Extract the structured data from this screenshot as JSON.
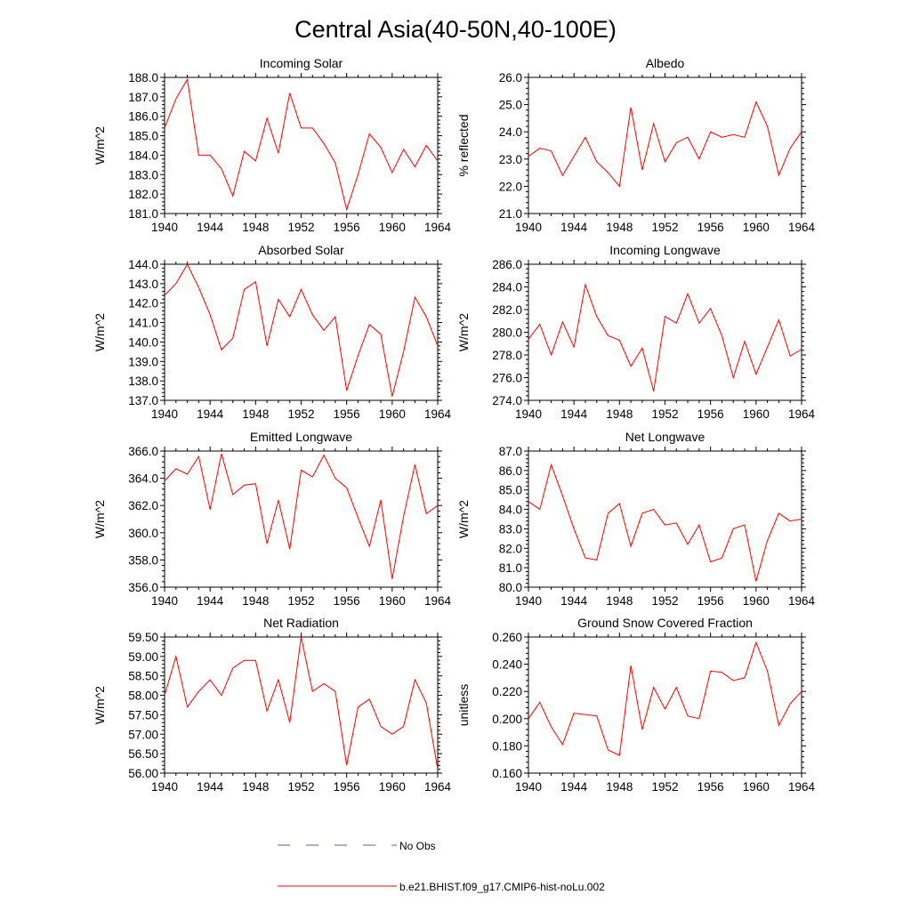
{
  "figure": {
    "title": "Central Asia(40-50N,40-100E)",
    "line_color": "#ff0000",
    "obs_color": "#5a5aa8"
  },
  "legend": {
    "obs_label": "No Obs",
    "model_label": "b.e21.BHIST.f09_g17.CMIP6-hist-noLu.002"
  },
  "chart_data": [
    {
      "type": "line",
      "title": "Incoming Solar",
      "ylabel": "W/m^2",
      "xlim": [
        1940,
        1964
      ],
      "ylim": [
        181.0,
        188.0
      ],
      "xticks": [
        "1940",
        "1944",
        "1948",
        "1952",
        "1956",
        "1960",
        "1964"
      ],
      "yticks": [
        "181.0",
        "182.0",
        "183.0",
        "184.0",
        "185.0",
        "186.0",
        "187.0",
        "188.0"
      ],
      "x": [
        1940,
        1941,
        1942,
        1943,
        1944,
        1945,
        1946,
        1947,
        1948,
        1949,
        1950,
        1951,
        1952,
        1953,
        1954,
        1955,
        1956,
        1957,
        1958,
        1959,
        1960,
        1961,
        1962,
        1963,
        1964
      ],
      "series": [
        {
          "name": "b.e21.BHIST.f09_g17.CMIP6-hist-noLu.002",
          "values": [
            185.4,
            186.9,
            187.9,
            184.0,
            184.0,
            183.3,
            181.9,
            184.2,
            183.7,
            185.9,
            184.1,
            187.2,
            185.4,
            185.4,
            184.6,
            183.6,
            181.2,
            183.0,
            185.1,
            184.4,
            183.1,
            184.3,
            183.4,
            184.5,
            183.7
          ]
        }
      ]
    },
    {
      "type": "line",
      "title": "Albedo",
      "ylabel": "% reflected",
      "xlim": [
        1940,
        1964
      ],
      "ylim": [
        21.0,
        26.0
      ],
      "xticks": [
        "1940",
        "1944",
        "1948",
        "1952",
        "1956",
        "1960",
        "1964"
      ],
      "yticks": [
        "21.0",
        "22.0",
        "23.0",
        "24.0",
        "25.0",
        "26.0"
      ],
      "x": [
        1940,
        1941,
        1942,
        1943,
        1944,
        1945,
        1946,
        1947,
        1948,
        1949,
        1950,
        1951,
        1952,
        1953,
        1954,
        1955,
        1956,
        1957,
        1958,
        1959,
        1960,
        1961,
        1962,
        1963,
        1964
      ],
      "series": [
        {
          "name": "b.e21.BHIST.f09_g17.CMIP6-hist-noLu.002",
          "values": [
            23.1,
            23.4,
            23.3,
            22.4,
            23.1,
            23.8,
            22.9,
            22.5,
            22.0,
            24.9,
            22.6,
            24.3,
            22.9,
            23.6,
            23.8,
            23.0,
            24.0,
            23.8,
            23.9,
            23.8,
            25.1,
            24.2,
            22.4,
            23.4,
            24.0
          ]
        }
      ]
    },
    {
      "type": "line",
      "title": "Absorbed Solar",
      "ylabel": "W/m^2",
      "xlim": [
        1940,
        1964
      ],
      "ylim": [
        137.0,
        144.0
      ],
      "xticks": [
        "1940",
        "1944",
        "1948",
        "1952",
        "1956",
        "1960",
        "1964"
      ],
      "yticks": [
        "137.0",
        "138.0",
        "139.0",
        "140.0",
        "141.0",
        "142.0",
        "143.0",
        "144.0"
      ],
      "x": [
        1940,
        1941,
        1942,
        1943,
        1944,
        1945,
        1946,
        1947,
        1948,
        1949,
        1950,
        1951,
        1952,
        1953,
        1954,
        1955,
        1956,
        1957,
        1958,
        1959,
        1960,
        1961,
        1962,
        1963,
        1964
      ],
      "series": [
        {
          "name": "b.e21.BHIST.f09_g17.CMIP6-hist-noLu.002",
          "values": [
            142.4,
            143.0,
            144.0,
            142.8,
            141.4,
            139.6,
            140.2,
            142.7,
            143.1,
            139.8,
            142.2,
            141.3,
            142.7,
            141.4,
            140.6,
            141.3,
            137.5,
            139.3,
            140.9,
            140.4,
            137.2,
            139.5,
            142.3,
            141.3,
            139.8
          ]
        }
      ]
    },
    {
      "type": "line",
      "title": "Incoming Longwave",
      "ylabel": "W/m^2",
      "xlim": [
        1940,
        1964
      ],
      "ylim": [
        274.0,
        286.0
      ],
      "xticks": [
        "1940",
        "1944",
        "1948",
        "1952",
        "1956",
        "1960",
        "1964"
      ],
      "yticks": [
        "274.0",
        "276.0",
        "278.0",
        "280.0",
        "282.0",
        "284.0",
        "286.0"
      ],
      "x": [
        1940,
        1941,
        1942,
        1943,
        1944,
        1945,
        1946,
        1947,
        1948,
        1949,
        1950,
        1951,
        1952,
        1953,
        1954,
        1955,
        1956,
        1957,
        1958,
        1959,
        1960,
        1961,
        1962,
        1963,
        1964
      ],
      "series": [
        {
          "name": "b.e21.BHIST.f09_g17.CMIP6-hist-noLu.002",
          "values": [
            279.4,
            280.7,
            278.0,
            280.9,
            278.7,
            284.2,
            281.4,
            279.7,
            279.3,
            277.0,
            278.6,
            274.8,
            281.4,
            280.8,
            283.4,
            280.8,
            282.1,
            279.7,
            276.0,
            279.2,
            276.3,
            278.7,
            281.1,
            277.9,
            278.5
          ]
        }
      ]
    },
    {
      "type": "line",
      "title": "Emitted Longwave",
      "ylabel": "W/m^2",
      "xlim": [
        1940,
        1964
      ],
      "ylim": [
        356.0,
        366.0
      ],
      "xticks": [
        "1940",
        "1944",
        "1948",
        "1952",
        "1956",
        "1960",
        "1964"
      ],
      "yticks": [
        "356.0",
        "358.0",
        "360.0",
        "362.0",
        "364.0",
        "366.0"
      ],
      "x": [
        1940,
        1941,
        1942,
        1943,
        1944,
        1945,
        1946,
        1947,
        1948,
        1949,
        1950,
        1951,
        1952,
        1953,
        1954,
        1955,
        1956,
        1957,
        1958,
        1959,
        1960,
        1961,
        1962,
        1963,
        1964
      ],
      "series": [
        {
          "name": "b.e21.BHIST.f09_g17.CMIP6-hist-noLu.002",
          "values": [
            363.8,
            364.7,
            364.3,
            365.6,
            361.7,
            365.8,
            362.8,
            363.5,
            363.6,
            359.2,
            362.4,
            358.8,
            364.6,
            364.1,
            365.7,
            364.0,
            363.3,
            361.1,
            359.0,
            362.4,
            356.6,
            361.2,
            365.0,
            361.4,
            362.0
          ]
        }
      ]
    },
    {
      "type": "line",
      "title": "Net Longwave",
      "ylabel": "W/m^2",
      "xlim": [
        1940,
        1964
      ],
      "ylim": [
        80.0,
        87.0
      ],
      "xticks": [
        "1940",
        "1944",
        "1948",
        "1952",
        "1956",
        "1960",
        "1964"
      ],
      "yticks": [
        "80.0",
        "81.0",
        "82.0",
        "83.0",
        "84.0",
        "85.0",
        "86.0",
        "87.0"
      ],
      "x": [
        1940,
        1941,
        1942,
        1943,
        1944,
        1945,
        1946,
        1947,
        1948,
        1949,
        1950,
        1951,
        1952,
        1953,
        1954,
        1955,
        1956,
        1957,
        1958,
        1959,
        1960,
        1961,
        1962,
        1963,
        1964
      ],
      "series": [
        {
          "name": "b.e21.BHIST.f09_g17.CMIP6-hist-noLu.002",
          "values": [
            84.4,
            84.0,
            86.3,
            84.7,
            83.0,
            81.5,
            81.4,
            83.8,
            84.3,
            82.1,
            83.8,
            84.0,
            83.2,
            83.3,
            82.2,
            83.2,
            81.3,
            81.5,
            83.0,
            83.2,
            80.3,
            82.4,
            83.8,
            83.4,
            83.5
          ]
        }
      ]
    },
    {
      "type": "line",
      "title": "Net Radiation",
      "ylabel": "W/m^2",
      "xlim": [
        1940,
        1964
      ],
      "ylim": [
        56.0,
        59.5
      ],
      "xticks": [
        "1940",
        "1944",
        "1948",
        "1952",
        "1956",
        "1960",
        "1964"
      ],
      "yticks": [
        "56.00",
        "56.50",
        "57.00",
        "57.50",
        "58.00",
        "58.50",
        "59.00",
        "59.50"
      ],
      "x": [
        1940,
        1941,
        1942,
        1943,
        1944,
        1945,
        1946,
        1947,
        1948,
        1949,
        1950,
        1951,
        1952,
        1953,
        1954,
        1955,
        1956,
        1957,
        1958,
        1959,
        1960,
        1961,
        1962,
        1963,
        1964
      ],
      "series": [
        {
          "name": "b.e21.BHIST.f09_g17.CMIP6-hist-noLu.002",
          "values": [
            58.0,
            59.0,
            57.7,
            58.1,
            58.4,
            58.0,
            58.7,
            58.9,
            58.9,
            57.6,
            58.4,
            57.3,
            59.5,
            58.1,
            58.3,
            58.1,
            56.2,
            57.7,
            57.9,
            57.2,
            57.0,
            57.2,
            58.4,
            57.8,
            56.1
          ]
        }
      ]
    },
    {
      "type": "line",
      "title": "Ground Snow Covered Fraction",
      "ylabel": "unitless",
      "xlim": [
        1940,
        1964
      ],
      "ylim": [
        0.16,
        0.26
      ],
      "xticks": [
        "1940",
        "1944",
        "1948",
        "1952",
        "1956",
        "1960",
        "1964"
      ],
      "yticks": [
        "0.160",
        "0.180",
        "0.200",
        "0.220",
        "0.240",
        "0.260"
      ],
      "x": [
        1940,
        1941,
        1942,
        1943,
        1944,
        1945,
        1946,
        1947,
        1948,
        1949,
        1950,
        1951,
        1952,
        1953,
        1954,
        1955,
        1956,
        1957,
        1958,
        1959,
        1960,
        1961,
        1962,
        1963,
        1964
      ],
      "series": [
        {
          "name": "b.e21.BHIST.f09_g17.CMIP6-hist-noLu.002",
          "values": [
            0.2,
            0.212,
            0.194,
            0.181,
            0.204,
            0.203,
            0.202,
            0.177,
            0.173,
            0.239,
            0.192,
            0.223,
            0.207,
            0.223,
            0.202,
            0.2,
            0.235,
            0.234,
            0.228,
            0.23,
            0.256,
            0.235,
            0.195,
            0.211,
            0.22
          ]
        }
      ]
    }
  ]
}
